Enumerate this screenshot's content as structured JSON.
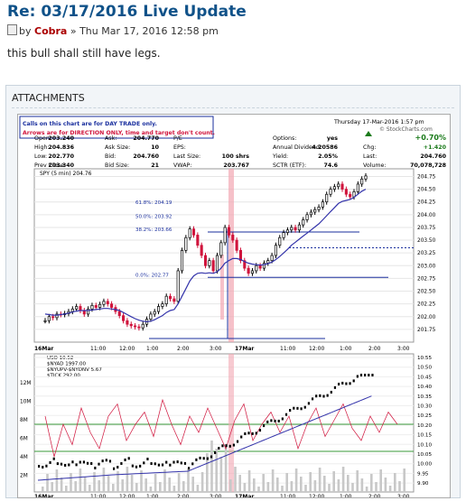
{
  "post": {
    "title": "Re: 03/17/2016 Live Update",
    "by": "by",
    "author": "Cobra",
    "date": "» Thu Mar 17, 2016 12:58 pm",
    "body": "this bull shall still have legs."
  },
  "attachments": {
    "label": "ATTACHMENTS"
  },
  "chart_header": {
    "notice_line1": "Calls on this chart are for DAY TRADE only.",
    "notice_line2": "Arrows are for DIRECTION ONLY, time and target don't count.",
    "timestamp": "Thursday 17-Mar-2016 1:57 pm",
    "source": "© StockCharts.com",
    "rows": [
      {
        "l1": "Open:",
        "v1": "203.240",
        "l2": "Ask:",
        "v2": "204.770",
        "l3": "P/E",
        "v3": "",
        "l4": "Options:",
        "v4": "yes",
        "l5": "",
        "v5": "+0.70%"
      },
      {
        "l1": "High:",
        "v1": "204.836",
        "l2": "Ask Size:",
        "v2": "10",
        "l3": "EPS:",
        "v3": "",
        "l4": "Annual Dividend:",
        "v4": "4.20586",
        "l5": "Chg:",
        "v5": "+1.420"
      },
      {
        "l1": "Low:",
        "v1": "202.770",
        "l2": "Bid:",
        "v2": "204.760",
        "l3": "Last Size:",
        "v3": "100 shrs",
        "l4": "Yield:",
        "v4": "2.05%",
        "l5": "Last:",
        "v5": "204.760"
      },
      {
        "l1": "Prev Close:",
        "v1": "203.340",
        "l2": "Bid Size:",
        "v2": "21",
        "l3": "VWAP:",
        "v3": "203.767",
        "l4": "SCTR (ETF):",
        "v4": "74.6",
        "l5": "Volume:",
        "v5": "70,078,728"
      }
    ]
  },
  "chart_data": [
    {
      "type": "line",
      "title": "SPY (5 min) 204.76",
      "ylim": [
        201.5,
        204.9
      ],
      "yticks": [
        "204.75",
        "204.50",
        "204.25",
        "204.00",
        "203.75",
        "203.50",
        "203.25",
        "203.00",
        "202.75",
        "202.50",
        "202.25",
        "202.00",
        "201.75"
      ],
      "xticks": [
        "16Mar",
        "11:00",
        "12:00",
        "1:00",
        "2:00",
        "3:00",
        "17Mar",
        "11:00",
        "12:00",
        "1:00",
        "2:00",
        "3:00"
      ],
      "fib_labels": [
        "61.8%: 204.19",
        "50.0%: 203.92",
        "38.2%: 203.66",
        "0.0%: 202.77"
      ],
      "series": [
        {
          "values": [
            201.92,
            202.0,
            201.98,
            202.05,
            202.04,
            202.06,
            202.1,
            202.15,
            202.2,
            202.12,
            202.05,
            202.15,
            202.22,
            202.18,
            202.24,
            202.3,
            202.25,
            202.18,
            202.1,
            202.02,
            201.92,
            201.85,
            201.82,
            201.8,
            201.78,
            201.85,
            201.95,
            202.05,
            202.1,
            202.2,
            202.25,
            202.4,
            202.35,
            202.3,
            202.9,
            203.3,
            203.55,
            203.72,
            203.6,
            203.4,
            203.2,
            203.0,
            203.1,
            202.9,
            203.2,
            203.45,
            203.75,
            203.6,
            203.5,
            203.3,
            203.1,
            202.95,
            202.85,
            202.9,
            203.0,
            202.95,
            203.05,
            203.1,
            203.2,
            203.4,
            203.55,
            203.65,
            203.7,
            203.75,
            203.7,
            203.8,
            203.9,
            204.0,
            204.05,
            204.1,
            204.15,
            204.25,
            204.4,
            204.5,
            204.55,
            204.6,
            204.5,
            204.4,
            204.35,
            204.45,
            204.6,
            204.7,
            204.76
          ]
        },
        {
          "values": [
            202.05,
            202.04,
            202.03,
            202.03,
            202.04,
            202.05,
            202.07,
            202.09,
            202.11,
            202.12,
            202.12,
            202.12,
            202.13,
            202.14,
            202.15,
            202.16,
            202.16,
            202.15,
            202.14,
            202.12,
            202.08,
            202.04,
            202.0,
            201.96,
            201.93,
            201.91,
            201.9,
            201.91,
            201.94,
            201.98,
            202.02,
            202.08,
            202.12,
            202.14,
            202.25,
            202.4,
            202.55,
            202.7,
            202.8,
            202.85,
            202.86,
            202.85,
            202.86,
            202.85,
            202.88,
            202.95,
            203.05,
            203.1,
            203.14,
            203.14,
            203.12,
            203.08,
            203.05,
            203.03,
            203.02,
            203.01,
            203.02,
            203.04,
            203.07,
            203.12,
            203.18,
            203.25,
            203.32,
            203.4,
            203.46,
            203.52,
            203.58,
            203.64,
            203.7,
            203.76,
            203.82,
            203.9,
            203.98,
            204.06,
            204.14,
            204.22,
            204.26,
            204.28,
            204.3,
            204.34,
            204.4,
            204.46,
            204.5
          ]
        }
      ]
    },
    {
      "type": "line",
      "legend": [
        "USO 10.52",
        "$NYAD 1997.00",
        "$NYUPV-$NYDNV 5.67",
        "$TICK 292.00"
      ],
      "yticks_left": [
        "12M",
        "10M",
        "8M",
        "6M",
        "4M",
        "2M"
      ],
      "yticks_right": [
        "10.55",
        "10.50",
        "10.45",
        "10.40",
        "10.35",
        "10.30",
        "10.25",
        "10.20",
        "10.15",
        "10.10",
        "10.05",
        "10.00",
        "9.95",
        "9.90"
      ],
      "xticks": [
        "16Mar",
        "11:00",
        "12:00",
        "1:00",
        "2:00",
        "3:00",
        "17Mar",
        "11:00",
        "12:00",
        "1:00",
        "2:00",
        "3:00"
      ]
    }
  ],
  "colors": {
    "title": "#105289",
    "author": "#aa0000",
    "up": "#000000",
    "down": "#d0143c",
    "ma": "#3333aa",
    "fib": "#1a2f9e",
    "highlight": "#f2a6b2"
  }
}
